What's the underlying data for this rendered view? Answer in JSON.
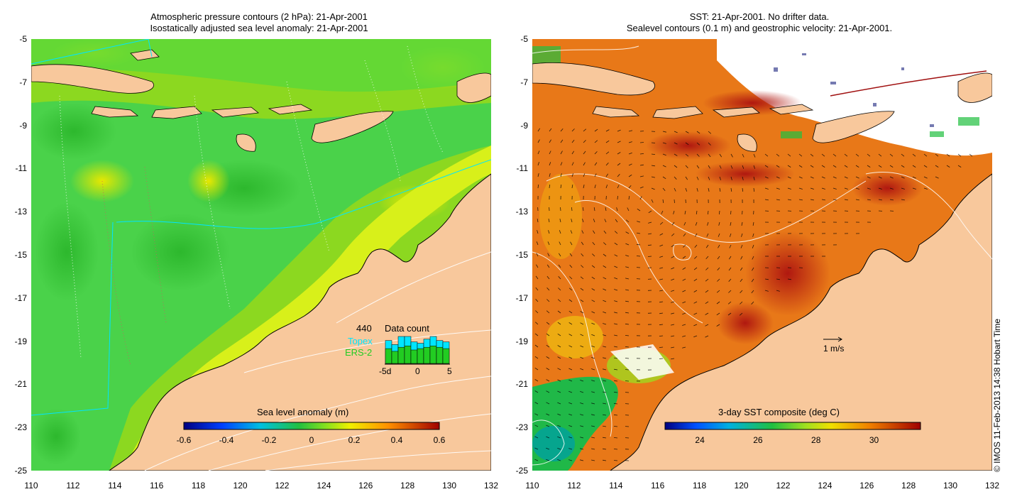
{
  "left_panel": {
    "title_line1": "Atmospheric pressure contours (2 hPa): 21-Apr-2001",
    "title_line2": "Isostatically adjusted sea level anomaly: 21-Apr-2001",
    "y_ticks": [
      "-5",
      "-7",
      "-9",
      "-11",
      "-13",
      "-15",
      "-17",
      "-19",
      "-21",
      "-23",
      "-25"
    ],
    "x_ticks": [
      "110",
      "112",
      "114",
      "116",
      "118",
      "120",
      "122",
      "124",
      "126",
      "128",
      "130",
      "132"
    ],
    "colorbar": {
      "label": "Sea level anomaly (m)",
      "ticks": [
        "-0.6",
        "-0.4",
        "-0.2",
        "0",
        "0.2",
        "0.4",
        "0.6"
      ],
      "range": [
        -0.6,
        0.6
      ]
    },
    "data_count": {
      "total": "440",
      "label": "Data count",
      "topex_label": "Topex",
      "ers2_label": "ERS-2",
      "axis_labels": [
        "-5d",
        "0",
        "5"
      ],
      "topex_color": "#00e5ff",
      "ers2_color": "#22cc22",
      "days": [
        {
          "day": -5,
          "topex": 0.85,
          "ers2": 0.55
        },
        {
          "day": -4,
          "topex": 0.7,
          "ers2": 0.45
        },
        {
          "day": -3,
          "topex": 1.0,
          "ers2": 0.6
        },
        {
          "day": -2,
          "topex": 1.0,
          "ers2": 0.65
        },
        {
          "day": -1,
          "topex": 0.8,
          "ers2": 0.5
        },
        {
          "day": 0,
          "topex": 0.75,
          "ers2": 0.55
        },
        {
          "day": 1,
          "topex": 0.9,
          "ers2": 0.6
        },
        {
          "day": 2,
          "topex": 1.0,
          "ers2": 0.65
        },
        {
          "day": 3,
          "topex": 0.85,
          "ers2": 0.6
        },
        {
          "day": 4,
          "topex": 0.8,
          "ers2": 0.55
        }
      ]
    }
  },
  "right_panel": {
    "title_line1": "SST: 21-Apr-2001. No drifter data.",
    "title_line2": "Sealevel contours (0.1 m) and geostrophic velocity: 21-Apr-2001.",
    "y_ticks": [
      "-5",
      "-7",
      "-9",
      "-11",
      "-13",
      "-15",
      "-17",
      "-19",
      "-21",
      "-23",
      "-25"
    ],
    "x_ticks": [
      "110",
      "112",
      "114",
      "116",
      "118",
      "120",
      "122",
      "124",
      "126",
      "128",
      "130",
      "132"
    ],
    "velocity_scale_label": "1 m/s",
    "colorbar": {
      "label": "3-day SST composite (deg C)",
      "ticks": [
        "24",
        "26",
        "28",
        "30"
      ],
      "range": [
        22.8,
        31.6
      ]
    }
  },
  "credit": "© IMOS 11-Feb-2013 14:38 Hobart Time",
  "colors": {
    "land": "#f8c89c",
    "ocean_green": "#4ad24a",
    "ocean_yellow": "#d8f01a",
    "sst_orange": "#e87818",
    "sst_red": "#b42010"
  }
}
